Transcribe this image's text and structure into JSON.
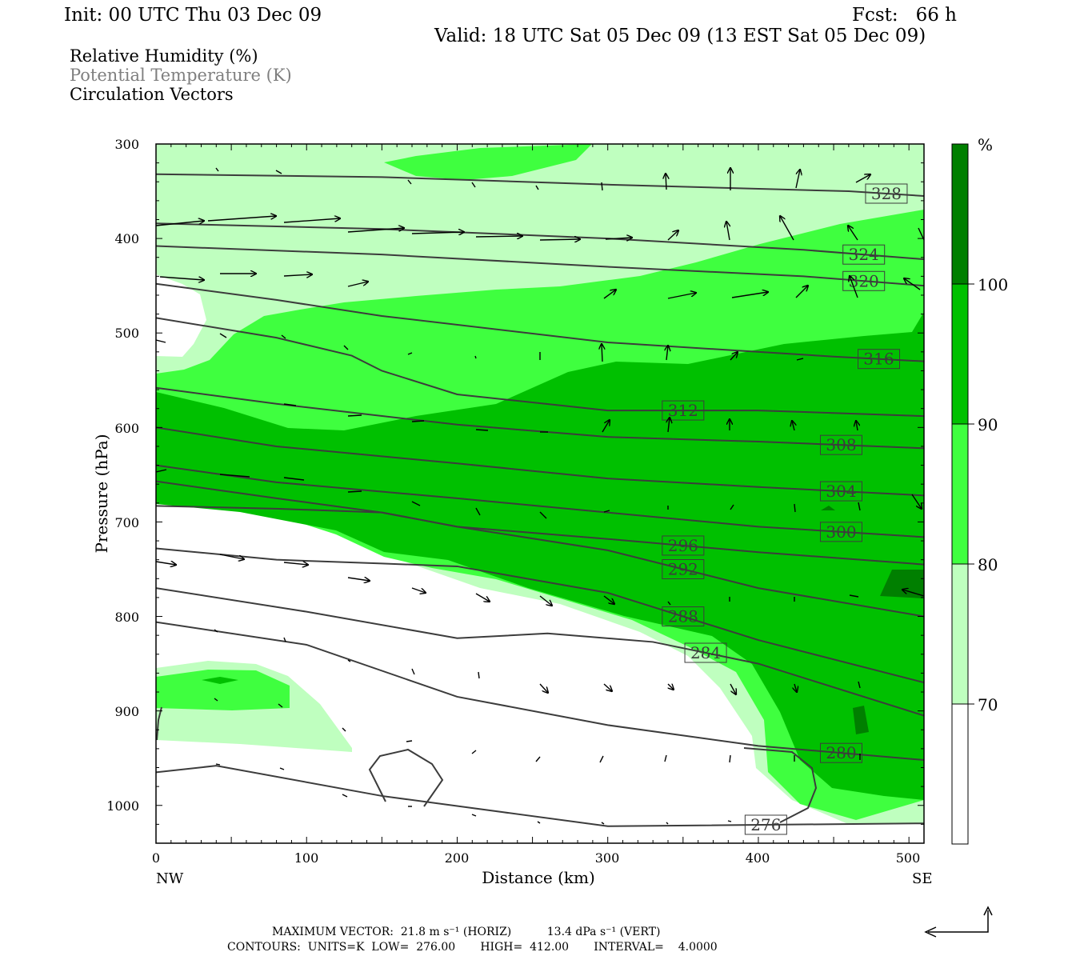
{
  "header": {
    "init": "Init: 00 UTC Thu 03 Dec 09",
    "fcst": "Fcst:   66 h",
    "valid": "Valid: 18 UTC Sat 05 Dec 09 (13 EST Sat 05 Dec 09)"
  },
  "legend": {
    "fill_field": "Relative Humidity (%)",
    "contour_field": "Potential Temperature (K)",
    "vector_field": "Circulation Vectors"
  },
  "footer": {
    "max_vector": "MAXIMUM VECTOR:  21.8 m s⁻¹ (HORIZ)          13.4 dPa s⁻¹ (VERT)",
    "contours": "CONTOURS:  UNITS=K  LOW=  276.00       HIGH=  412.00       INTERVAL=    4.0000"
  },
  "colorbar": {
    "unit": "%",
    "levels": [
      70,
      80,
      90,
      100
    ],
    "colors": [
      "#ffffff",
      "#bfffbf",
      "#3fff3f",
      "#00c000",
      "#007f00"
    ]
  },
  "chart_data": {
    "type": "contour",
    "xlabel": "Distance (km)",
    "ylabel": "Pressure (hPa)",
    "xlim": [
      0,
      510
    ],
    "ylim": [
      1040,
      300
    ],
    "x_ticks": [
      0,
      100,
      200,
      300,
      400,
      500
    ],
    "y_ticks": [
      300,
      400,
      500,
      600,
      700,
      800,
      900,
      1000
    ],
    "x_endpoints": {
      "left": "NW",
      "right": "SE"
    },
    "theta_contours": [
      {
        "label": "328",
        "points": [
          [
            0,
            332
          ],
          [
            150,
            335
          ],
          [
            300,
            343
          ],
          [
            460,
            350
          ],
          [
            510,
            355
          ]
        ]
      },
      {
        "label": "324",
        "points": [
          [
            0,
            384
          ],
          [
            150,
            390
          ],
          [
            300,
            400
          ],
          [
            430,
            412
          ],
          [
            510,
            422
          ]
        ]
      },
      {
        "label": "320",
        "points": [
          [
            0,
            408
          ],
          [
            150,
            417
          ],
          [
            300,
            430
          ],
          [
            430,
            440
          ],
          [
            510,
            450
          ]
        ]
      },
      {
        "label": "316",
        "points": [
          [
            0,
            448
          ],
          [
            80,
            465
          ],
          [
            150,
            482
          ],
          [
            300,
            510
          ],
          [
            450,
            525
          ],
          [
            510,
            530
          ]
        ]
      },
      {
        "label": "312",
        "points": [
          [
            0,
            484
          ],
          [
            80,
            505
          ],
          [
            130,
            524
          ],
          [
            150,
            540
          ],
          [
            200,
            565
          ],
          [
            300,
            582
          ],
          [
            400,
            582
          ],
          [
            510,
            588
          ]
        ]
      },
      {
        "label": "308",
        "points": [
          [
            0,
            558
          ],
          [
            80,
            575
          ],
          [
            200,
            597
          ],
          [
            300,
            610
          ],
          [
            400,
            615
          ],
          [
            510,
            622
          ]
        ]
      },
      {
        "label": "304",
        "points": [
          [
            0,
            600
          ],
          [
            80,
            620
          ],
          [
            200,
            638
          ],
          [
            300,
            654
          ],
          [
            400,
            663
          ],
          [
            510,
            672
          ]
        ]
      },
      {
        "label": "300",
        "points": [
          [
            0,
            640
          ],
          [
            80,
            658
          ],
          [
            200,
            675
          ],
          [
            300,
            690
          ],
          [
            400,
            705
          ],
          [
            510,
            716
          ]
        ]
      },
      {
        "label": "296",
        "points": [
          [
            0,
            657
          ],
          [
            80,
            675
          ],
          [
            150,
            690
          ],
          [
            200,
            705
          ],
          [
            300,
            718
          ],
          [
            400,
            732
          ],
          [
            510,
            745
          ]
        ]
      },
      {
        "label": "292",
        "points": [
          [
            0,
            683
          ],
          [
            80,
            686
          ],
          [
            150,
            690
          ],
          [
            200,
            705
          ],
          [
            300,
            730
          ],
          [
            400,
            770
          ],
          [
            510,
            800
          ]
        ]
      },
      {
        "label": "288",
        "points": [
          [
            0,
            728
          ],
          [
            80,
            740
          ],
          [
            150,
            744
          ],
          [
            200,
            747
          ],
          [
            300,
            775
          ],
          [
            400,
            825
          ],
          [
            510,
            870
          ]
        ]
      },
      {
        "label": "284",
        "points": [
          [
            0,
            770
          ],
          [
            100,
            795
          ],
          [
            200,
            823
          ],
          [
            260,
            818
          ],
          [
            330,
            827
          ],
          [
            400,
            850
          ],
          [
            510,
            905
          ]
        ]
      },
      {
        "label": "280",
        "points": [
          [
            0,
            806
          ],
          [
            100,
            830
          ],
          [
            200,
            885
          ],
          [
            300,
            915
          ],
          [
            400,
            937
          ],
          [
            510,
            952
          ]
        ]
      },
      {
        "label": "276",
        "points": [
          [
            0,
            965
          ],
          [
            40,
            958
          ],
          [
            150,
            990
          ],
          [
            300,
            1022
          ],
          [
            510,
            1019
          ]
        ]
      }
    ],
    "rh_shading": [
      {
        "min": 70,
        "max": 80,
        "color": "#bfffbf"
      },
      {
        "min": 80,
        "max": 90,
        "color": "#3fff3f"
      },
      {
        "min": 90,
        "max": 100,
        "color": "#00c000"
      },
      {
        "min": 100,
        "max": null,
        "color": "#007f00"
      }
    ],
    "grid": false
  }
}
